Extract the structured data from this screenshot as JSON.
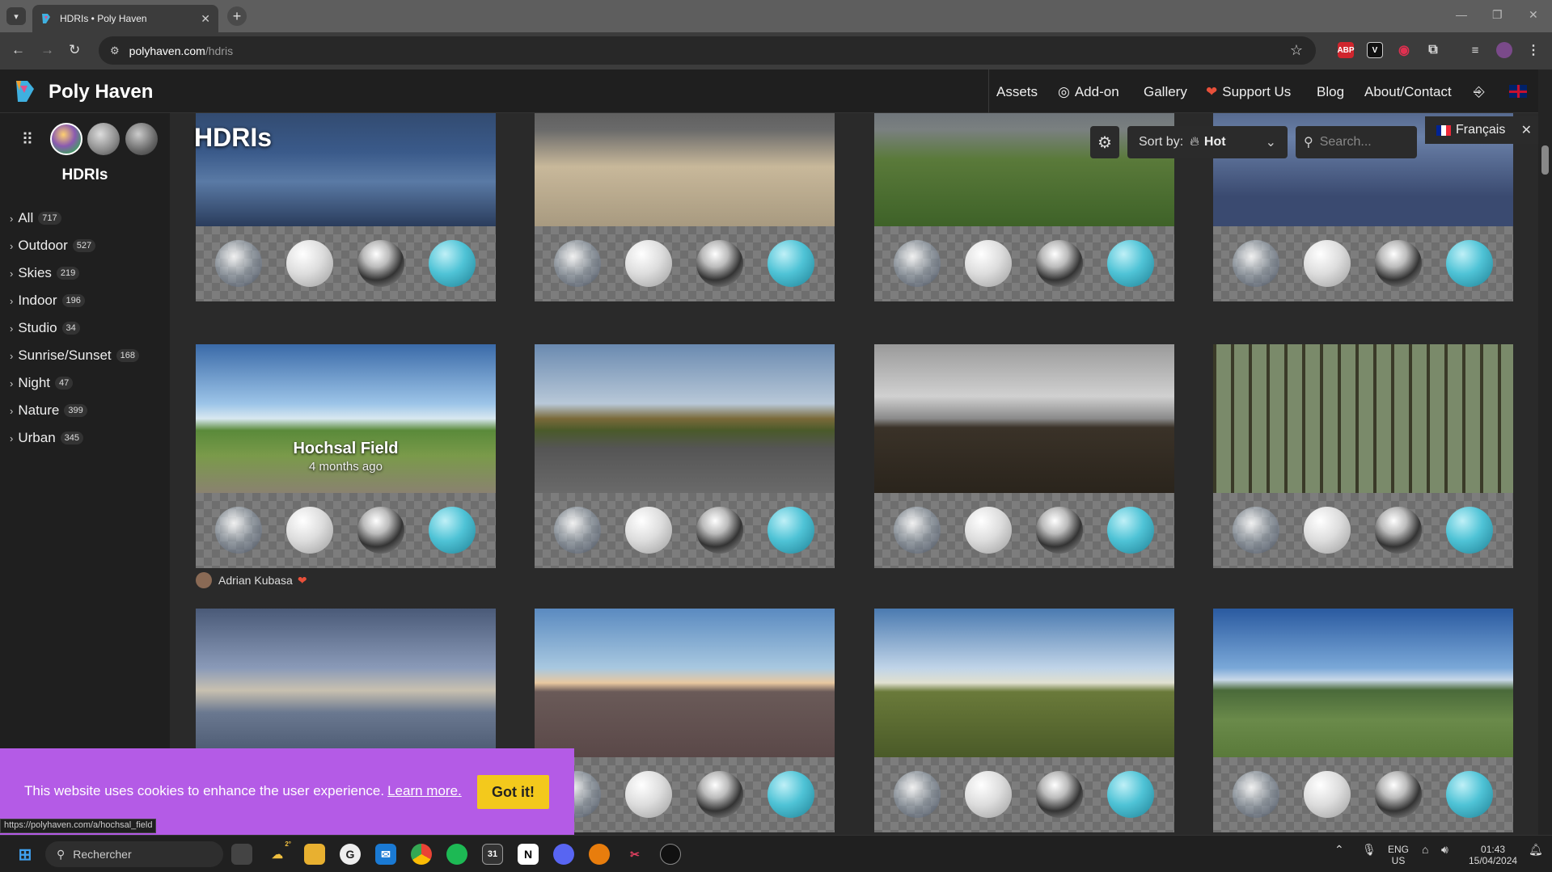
{
  "browser": {
    "tab_title": "HDRIs • Poly Haven",
    "url_host": "polyhaven.com",
    "url_path": "/hdris",
    "status_url": "https://polyhaven.com/a/hochsal_field"
  },
  "site": {
    "brand": "Poly Haven",
    "nav": [
      "Assets",
      "Add-on",
      "Gallery",
      "Support Us",
      "Blog",
      "About/Contact"
    ]
  },
  "sidebar": {
    "title": "HDRIs",
    "categories": [
      {
        "label": "All",
        "count": "717"
      },
      {
        "label": "Outdoor",
        "count": "527"
      },
      {
        "label": "Skies",
        "count": "219"
      },
      {
        "label": "Indoor",
        "count": "196"
      },
      {
        "label": "Studio",
        "count": "34"
      },
      {
        "label": "Sunrise/Sunset",
        "count": "168"
      },
      {
        "label": "Night",
        "count": "47"
      },
      {
        "label": "Nature",
        "count": "399"
      },
      {
        "label": "Urban",
        "count": "345"
      }
    ]
  },
  "main": {
    "title": "HDRIs",
    "sort_label": "Sort by:",
    "sort_value": "Hot",
    "search_placeholder": "Search...",
    "language": "Français",
    "hover_card": {
      "title": "Hochsal Field",
      "subtitle": "4 months ago",
      "author": "Adrian Kubasa"
    }
  },
  "cookie": {
    "message": "This website uses cookies to enhance the user experience.",
    "link": "Learn more.",
    "button": "Got it!"
  },
  "taskbar": {
    "search_placeholder": "Rechercher",
    "lang_top": "ENG",
    "lang_bottom": "US",
    "time": "01:43",
    "date": "15/04/2024",
    "weather_badge": "2°"
  },
  "colors": {
    "cookie_bg": "#b45be6",
    "cookie_button": "#f3c91c",
    "accent_heart": "#e8503a"
  }
}
